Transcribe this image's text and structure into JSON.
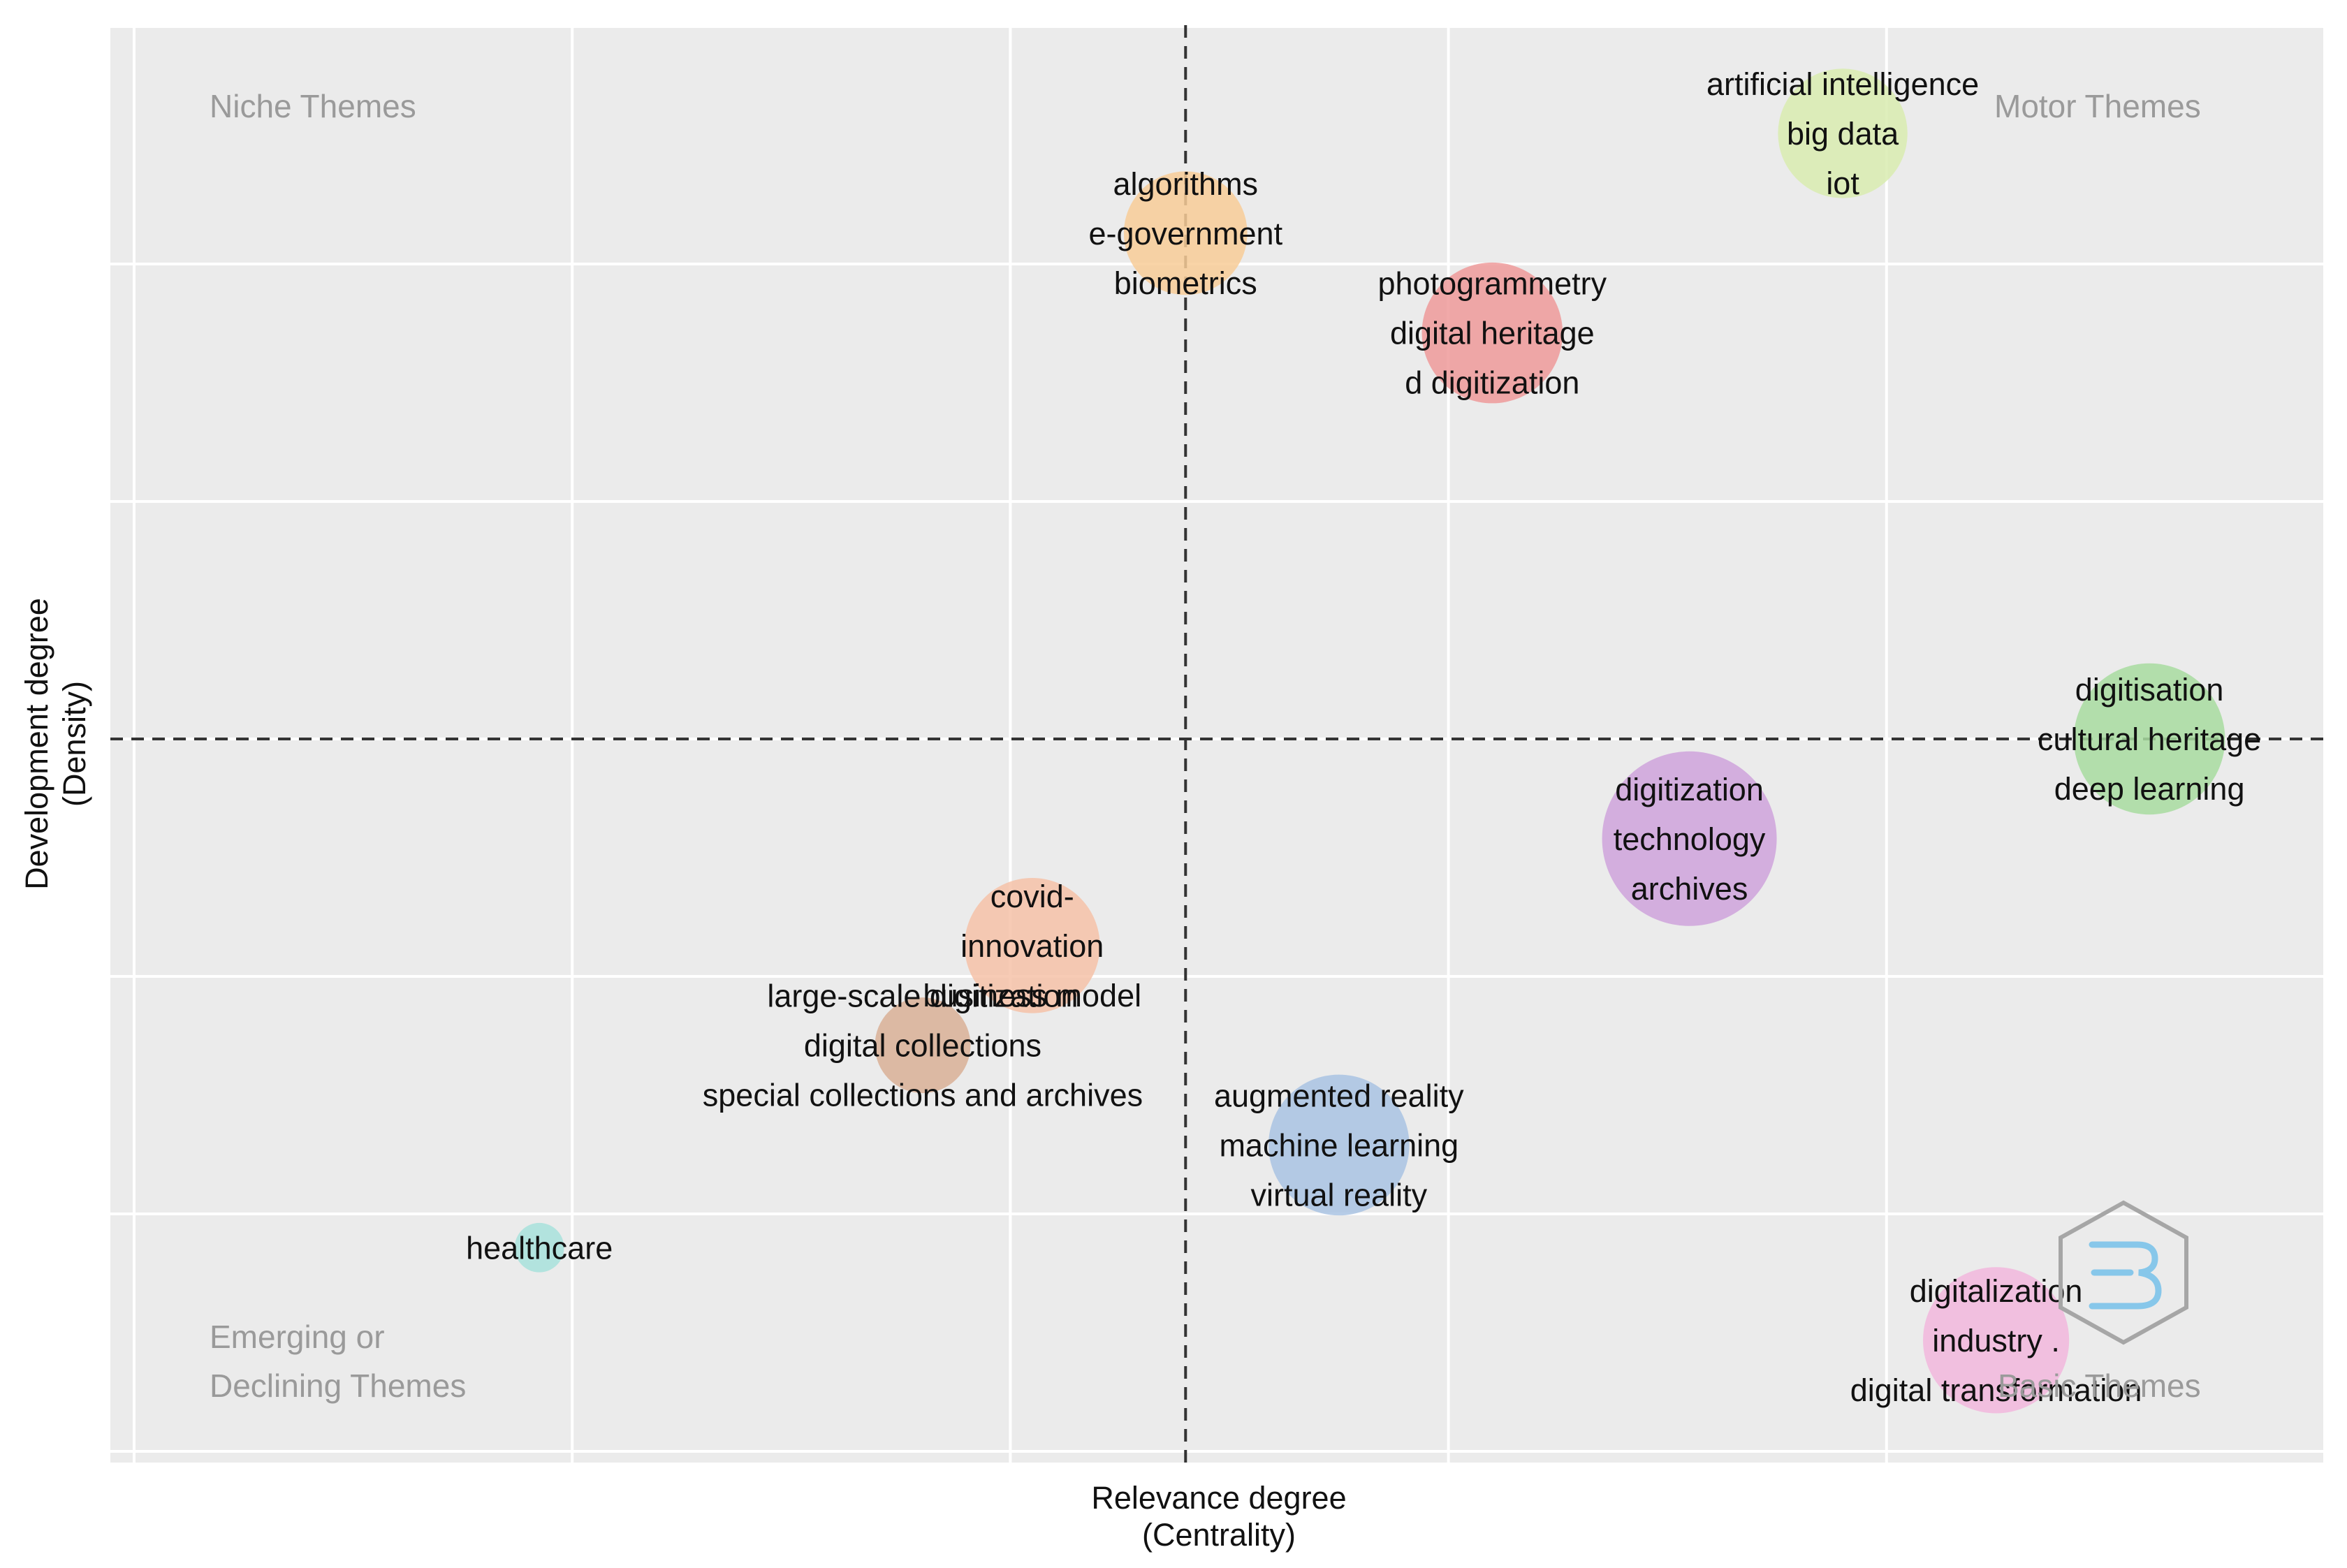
{
  "chart_data": {
    "type": "scatter",
    "title": "",
    "xlabel": "Relevance degree",
    "xlabel_sub": "(Centrality)",
    "ylabel": "Development degree",
    "ylabel_sub": "(Density)",
    "xlim": [
      0,
      1
    ],
    "ylim": [
      0,
      1
    ],
    "x_ref": 0.48,
    "y_ref": 0.5,
    "grid": true,
    "quadrants": {
      "niche": "Niche Themes",
      "motor": "Motor Themes",
      "emerging_line1": "Emerging or",
      "emerging_line2": "Declining Themes",
      "basic": "Basic Themes"
    },
    "clusters": [
      {
        "name": "cluster-ai",
        "x": 0.78,
        "y": 0.925,
        "size": 0.55,
        "color": "#d9ecb0",
        "labels": [
          "artificial intelligence",
          "big data",
          "iot"
        ]
      },
      {
        "name": "cluster-algorithms",
        "x": 0.48,
        "y": 0.855,
        "size": 0.5,
        "color": "#f8cd98",
        "labels": [
          "algorithms",
          "e-government",
          "biometrics"
        ]
      },
      {
        "name": "cluster-photogrammetry",
        "x": 0.62,
        "y": 0.785,
        "size": 0.65,
        "color": "#ef9a9a",
        "labels": [
          "photogrammetry",
          "digital heritage",
          "d digitization"
        ]
      },
      {
        "name": "cluster-digitisation",
        "x": 0.92,
        "y": 0.5,
        "size": 0.75,
        "color": "#a8dca0",
        "labels": [
          "digitisation",
          "cultural heritage",
          "deep learning"
        ]
      },
      {
        "name": "cluster-digitization",
        "x": 0.71,
        "y": 0.43,
        "size": 1.0,
        "color": "#cfa3dc",
        "labels": [
          "digitization",
          "technology",
          "archives"
        ]
      },
      {
        "name": "cluster-covid",
        "x": 0.41,
        "y": 0.355,
        "size": 0.6,
        "color": "#f6c2a8",
        "labels": [
          "covid-",
          "innovation",
          "business model"
        ]
      },
      {
        "name": "cluster-large-scale",
        "x": 0.36,
        "y": 0.285,
        "size": 0.3,
        "color": "#d9b096",
        "labels": [
          "large-scale digitization",
          "digital collections",
          "special collections and archives"
        ]
      },
      {
        "name": "cluster-augmented-reality",
        "x": 0.55,
        "y": 0.215,
        "size": 0.65,
        "color": "#a9c3e3",
        "labels": [
          "augmented reality",
          "machine learning",
          "virtual reality"
        ]
      },
      {
        "name": "cluster-healthcare",
        "x": 0.185,
        "y": 0.143,
        "size": 0.08,
        "color": "#a8e2dc",
        "labels": [
          "healthcare"
        ]
      },
      {
        "name": "cluster-digitalization",
        "x": 0.85,
        "y": 0.078,
        "size": 0.7,
        "color": "#f2b7dd",
        "labels": [
          "digitalization",
          "industry .",
          "digital transformation"
        ]
      }
    ]
  }
}
